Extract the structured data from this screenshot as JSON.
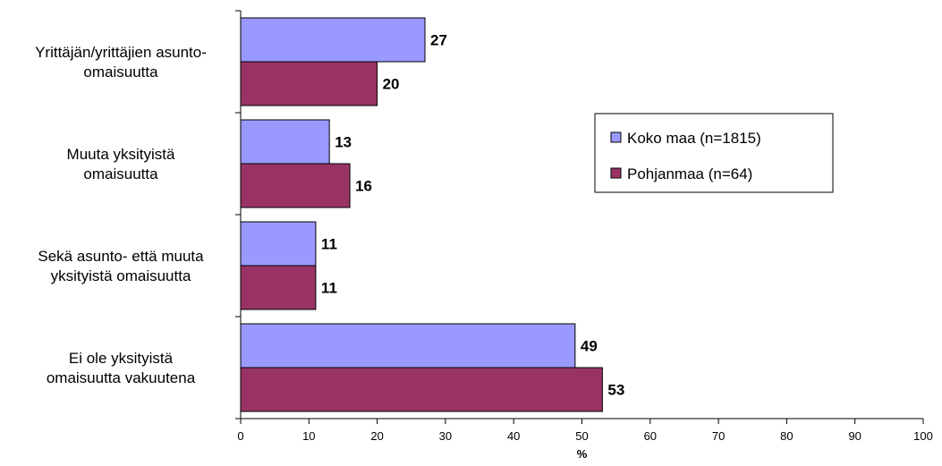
{
  "chart_data": {
    "type": "bar",
    "orientation": "horizontal",
    "categories": [
      [
        "Yrittäjän/yrittäjien asunto-",
        "omaisuutta"
      ],
      [
        "Muuta yksityistä",
        "omaisuutta"
      ],
      [
        "Sekä asunto- että muuta",
        "yksityistä omaisuutta"
      ],
      [
        "Ei ole yksityistä",
        "omaisuutta vakuutena"
      ]
    ],
    "series": [
      {
        "name": "Koko maa (n=1815)",
        "values": [
          27,
          13,
          11,
          49
        ],
        "color": "#9999ff"
      },
      {
        "name": "Pohjanmaa (n=64)",
        "values": [
          20,
          16,
          11,
          53
        ],
        "color": "#993366"
      }
    ],
    "xlabel": "%",
    "xlim": [
      0,
      100
    ],
    "xticks": [
      0,
      10,
      20,
      30,
      40,
      50,
      60,
      70,
      80,
      90,
      100
    ],
    "legend_position": "right",
    "grid": false
  }
}
